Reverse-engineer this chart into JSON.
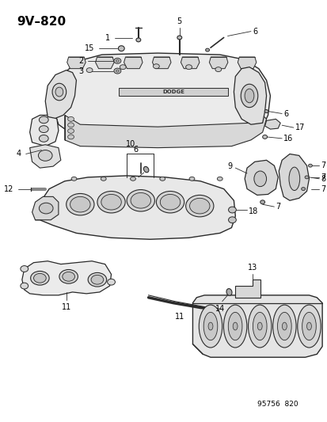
{
  "title": "9V–820",
  "bg_color": "#ffffff",
  "fig_width": 4.14,
  "fig_height": 5.33,
  "dpi": 100,
  "footer": "95756  820",
  "line_color": "#2a2a2a",
  "fill_light": "#f0f0f0",
  "fill_med": "#e0e0e0",
  "fill_dark": "#cccccc"
}
